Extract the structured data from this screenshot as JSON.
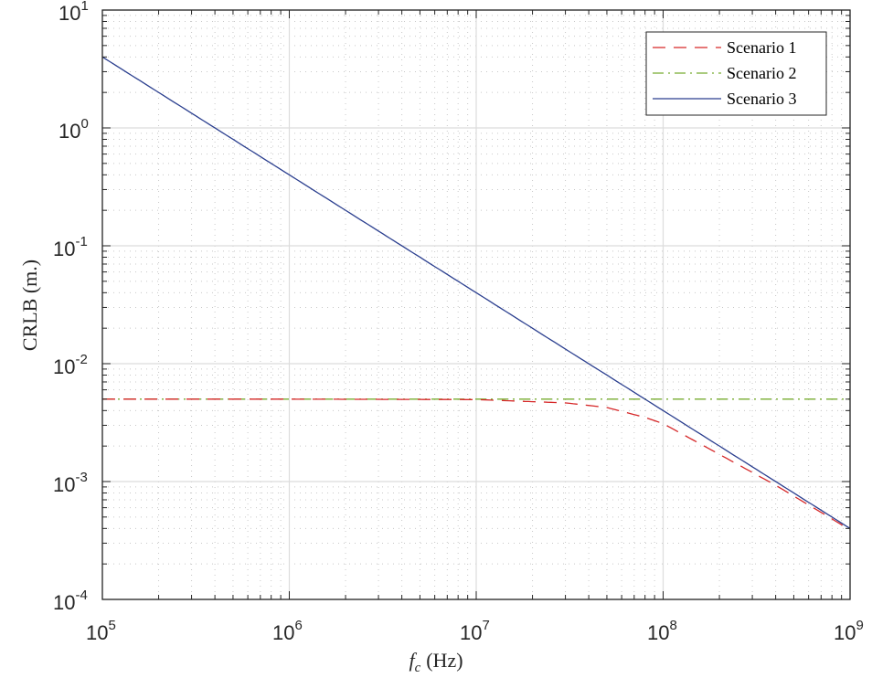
{
  "chart_data": {
    "type": "line",
    "title": "",
    "xlabel": "f_c (Hz)",
    "ylabel": "CRLB (m.)",
    "xscale": "log",
    "yscale": "log",
    "xlim": [
      100000,
      1000000000
    ],
    "ylim": [
      0.0001,
      10
    ],
    "grid": true,
    "minor_grid": true,
    "legend_position": "upper right",
    "x_tick_labels": [
      "10^5",
      "10^6",
      "10^7",
      "10^8",
      "10^9"
    ],
    "y_tick_labels": [
      "10^-4",
      "10^-3",
      "10^-2",
      "10^-1",
      "10^0",
      "10^1"
    ],
    "x": [
      100000,
      1000000,
      10000000,
      30000000,
      50000000,
      80000000,
      100000000,
      200000000,
      400000000,
      1000000000
    ],
    "series": [
      {
        "name": "Scenario 1",
        "style": "dashed",
        "color": "#d62728",
        "values": [
          0.005,
          0.005,
          0.00496,
          0.00465,
          0.00425,
          0.0035,
          0.0031,
          0.0017,
          0.00093,
          0.00039
        ]
      },
      {
        "name": "Scenario 2",
        "style": "dash-dot",
        "color": "#77ac30",
        "values": [
          0.005,
          0.005,
          0.005,
          0.005,
          0.005,
          0.005,
          0.005,
          0.005,
          0.005,
          0.005
        ]
      },
      {
        "name": "Scenario 3",
        "style": "solid",
        "color": "#2b3f8f",
        "values": [
          4.0,
          0.4,
          0.04,
          0.0133,
          0.008,
          0.005,
          0.004,
          0.002,
          0.001,
          0.0004
        ]
      }
    ]
  },
  "axes": {
    "xlabel_var": "f",
    "xlabel_sub": "c",
    "xlabel_unit": "(Hz)",
    "ylabel": "CRLB (m.)",
    "x_ticks": [
      {
        "base": "10",
        "exp": "5"
      },
      {
        "base": "10",
        "exp": "6"
      },
      {
        "base": "10",
        "exp": "7"
      },
      {
        "base": "10",
        "exp": "8"
      },
      {
        "base": "10",
        "exp": "9"
      }
    ],
    "y_ticks": [
      {
        "base": "10",
        "exp": "-4"
      },
      {
        "base": "10",
        "exp": "-3"
      },
      {
        "base": "10",
        "exp": "-2"
      },
      {
        "base": "10",
        "exp": "-1"
      },
      {
        "base": "10",
        "exp": "0"
      },
      {
        "base": "10",
        "exp": "1"
      }
    ]
  },
  "legend": {
    "items": [
      {
        "label": "Scenario 1",
        "color": "#d62728",
        "dash": "14 9"
      },
      {
        "label": "Scenario 2",
        "color": "#77ac30",
        "dash": "12 5 2 5"
      },
      {
        "label": "Scenario 3",
        "color": "#2b3f8f",
        "dash": ""
      }
    ]
  },
  "colors": {
    "axis": "#262626",
    "grid": "#dcdcdc",
    "minor_grid": "#c8c8c8"
  }
}
